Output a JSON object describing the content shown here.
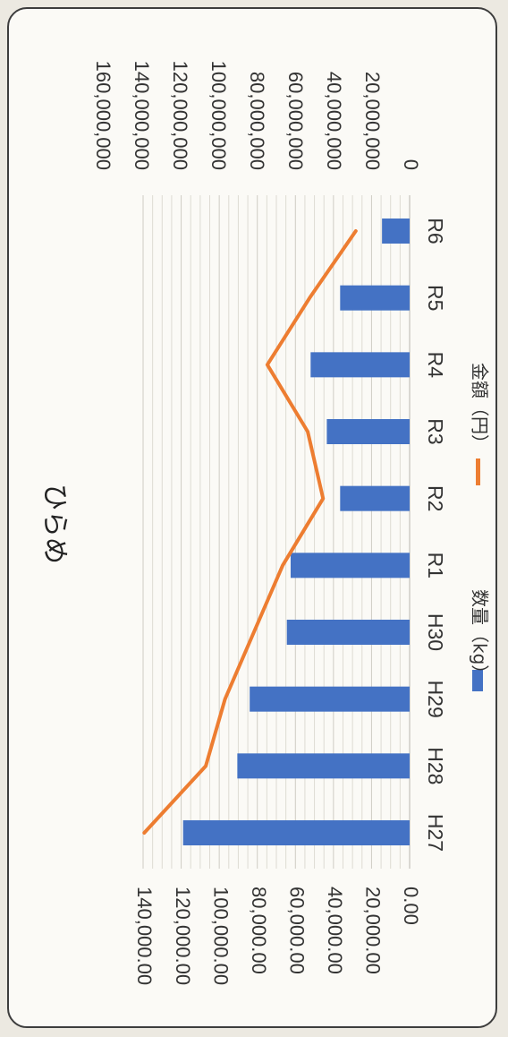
{
  "chart_data": {
    "type": "bar+line",
    "title": "ひらめ",
    "categories": [
      "H27",
      "H28",
      "H29",
      "H30",
      "R1",
      "R2",
      "R3",
      "R4",
      "R5",
      "R6"
    ],
    "series": [
      {
        "name": "数量（kg）",
        "type": "bar",
        "axis": "primary",
        "color": "#4472c4",
        "values": [
          119000,
          90500,
          84000,
          64500,
          62500,
          36500,
          43500,
          52000,
          36500,
          14500
        ]
      },
      {
        "name": "金額（円）",
        "type": "line",
        "axis": "secondary",
        "color": "#ed7d31",
        "values": [
          138000000,
          106000000,
          96000000,
          81000000,
          66000000,
          45000000,
          53000000,
          74000000,
          52000000,
          28000000
        ]
      }
    ],
    "primary_axis": {
      "min": 0,
      "max": 140000,
      "tick_labels": [
        "0.00",
        "20,000.00",
        "40,000.00",
        "60,000.00",
        "80,000.00",
        "100,000.00",
        "120,000.00",
        "140,000.00"
      ]
    },
    "secondary_axis": {
      "min": 0,
      "max": 160000000,
      "tick_labels": [
        "0",
        "20,000,000",
        "40,000,000",
        "60,000,000",
        "80,000,000",
        "100,000,000",
        "120,000,000",
        "140,000,000",
        "160,000,000"
      ]
    },
    "grid": true,
    "legend_position": "bottom",
    "orientation": "rotated 90° clockwise"
  }
}
